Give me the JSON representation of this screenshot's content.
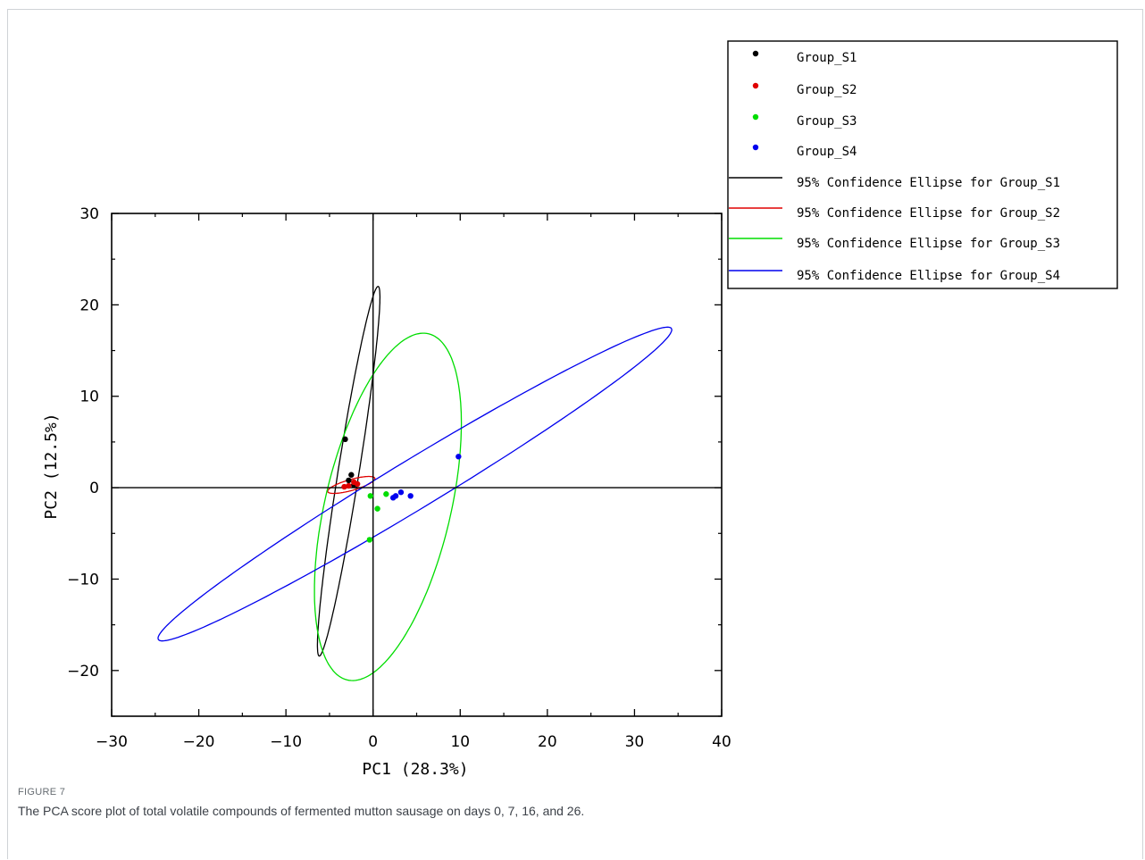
{
  "figure": {
    "label": "FIGURE 7",
    "caption": "The PCA score plot of total volatile compounds of fermented mutton sausage on days 0, 7, 16, and 26."
  },
  "chart_data": {
    "type": "scatter",
    "title": "",
    "xlabel": "PC1 (28.3%)",
    "ylabel": "PC2 (12.5%)",
    "xlim": [
      -30,
      40
    ],
    "ylim": [
      -25,
      30
    ],
    "xticks": [
      -30,
      -20,
      -10,
      0,
      10,
      20,
      30,
      40
    ],
    "yticks": [
      -20,
      -10,
      0,
      10,
      20,
      30
    ],
    "xtick_labels": [
      "−30",
      "−20",
      "−10",
      "0",
      "10",
      "20",
      "30",
      "40"
    ],
    "ytick_labels": [
      "−20",
      "−10",
      "0",
      "10",
      "20",
      "30"
    ],
    "grid": false,
    "zero_lines": true,
    "legend_position": "top-right",
    "series": [
      {
        "name": "Group_S1",
        "color": "#000000",
        "points": [
          [
            -3.2,
            5.3
          ],
          [
            -2.5,
            1.4
          ],
          [
            -2.2,
            0.3
          ],
          [
            -2.8,
            0.8
          ]
        ]
      },
      {
        "name": "Group_S2",
        "color": "#e00000",
        "points": [
          [
            -2.8,
            0.2
          ],
          [
            -2.2,
            0.6
          ],
          [
            -3.3,
            0.1
          ],
          [
            -1.8,
            0.4
          ]
        ]
      },
      {
        "name": "Group_S3",
        "color": "#00dd00",
        "points": [
          [
            -0.3,
            -0.9
          ],
          [
            1.5,
            -0.7
          ],
          [
            0.5,
            -2.3
          ],
          [
            -0.4,
            -5.7
          ]
        ]
      },
      {
        "name": "Group_S4",
        "color": "#0000ee",
        "points": [
          [
            9.8,
            3.4
          ],
          [
            3.2,
            -0.5
          ],
          [
            4.3,
            -0.9
          ],
          [
            2.6,
            -0.9
          ],
          [
            2.3,
            -1.1
          ]
        ]
      }
    ],
    "ellipses": [
      {
        "name": "95% Confidence Ellipse for Group_S1",
        "color": "#000000",
        "cx": -2.8,
        "cy": 1.8,
        "a": 20.5,
        "b": 1.2,
        "angle_deg": 80.5
      },
      {
        "name": "95% Confidence Ellipse for Group_S2",
        "color": "#e00000",
        "cx": -2.5,
        "cy": 0.3,
        "a": 2.8,
        "b": 0.6,
        "angle_deg": 15
      },
      {
        "name": "95% Confidence Ellipse for Group_S3",
        "color": "#00dd00",
        "cx": 1.7,
        "cy": -2.1,
        "a": 19.5,
        "b": 7.2,
        "angle_deg": 76
      },
      {
        "name": "95% Confidence Ellipse for Group_S4",
        "color": "#0000ee",
        "cx": 4.8,
        "cy": 0.4,
        "a": 34,
        "b": 2.7,
        "angle_deg": 30
      }
    ]
  }
}
